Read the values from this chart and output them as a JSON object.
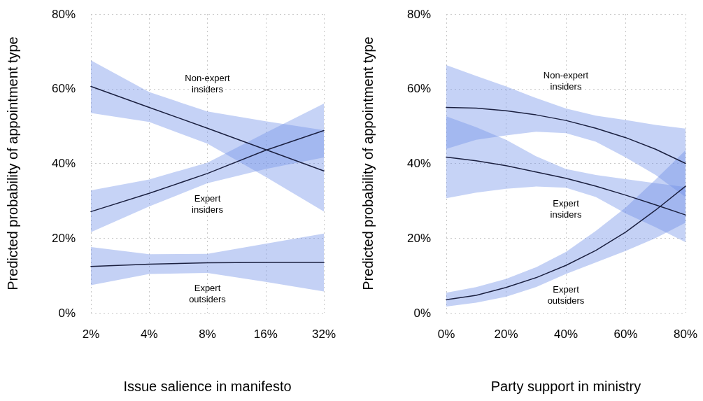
{
  "chart_data": [
    {
      "type": "line",
      "xlabel": "Issue salience in manifesto",
      "ylabel": "Predicted probability of appointment type",
      "categories": [
        "2%",
        "4%",
        "8%",
        "16%",
        "32%"
      ],
      "ylim": [
        0,
        80
      ],
      "yticks": [
        {
          "value": 0,
          "label": "0%"
        },
        {
          "value": 20,
          "label": "20%"
        },
        {
          "value": 40,
          "label": "40%"
        },
        {
          "value": 60,
          "label": "60%"
        },
        {
          "value": 80,
          "label": "80%"
        }
      ],
      "grid": true,
      "marker": "none",
      "line_style": "solid",
      "series": [
        {
          "name": "Non-expert\ninsiders",
          "color": "#1b2040",
          "values": [
            60.6,
            55.0,
            49.4,
            43.7,
            38.0
          ],
          "upper": [
            67.6,
            59.1,
            53.9,
            51.3,
            48.9
          ],
          "lower": [
            53.5,
            51.1,
            45.3,
            36.4,
            27.1
          ]
        },
        {
          "name": "Expert\ninsiders",
          "color": "#1b2040",
          "values": [
            27.1,
            32.0,
            37.3,
            43.5,
            48.8
          ],
          "upper": [
            32.8,
            35.7,
            40.2,
            48.2,
            56.0
          ],
          "lower": [
            21.6,
            28.5,
            34.7,
            38.5,
            41.6
          ]
        },
        {
          "name": "Expert\noutsiders",
          "color": "#1b2040",
          "values": [
            12.4,
            13.0,
            13.4,
            13.5,
            13.5
          ],
          "upper": [
            17.6,
            15.7,
            15.8,
            18.5,
            21.2
          ],
          "lower": [
            7.4,
            10.4,
            10.7,
            8.3,
            5.7
          ]
        }
      ]
    },
    {
      "type": "line",
      "xlabel": "Party support in ministry",
      "ylabel": "Predicted probability of appointment type",
      "xlim": [
        0,
        80
      ],
      "xticks": [
        {
          "value": 0,
          "label": "0%"
        },
        {
          "value": 20,
          "label": "20%"
        },
        {
          "value": 40,
          "label": "40%"
        },
        {
          "value": 60,
          "label": "60%"
        },
        {
          "value": 80,
          "label": "80%"
        }
      ],
      "ylim": [
        0,
        80
      ],
      "yticks": [
        {
          "value": 0,
          "label": "0%"
        },
        {
          "value": 20,
          "label": "20%"
        },
        {
          "value": 40,
          "label": "40%"
        },
        {
          "value": 60,
          "label": "60%"
        },
        {
          "value": 80,
          "label": "80%"
        }
      ],
      "grid": true,
      "marker": "none",
      "line_style": "solid",
      "x": [
        0,
        10,
        20,
        30,
        40,
        50,
        60,
        70,
        80
      ],
      "series": [
        {
          "name": "Non-expert\ninsiders",
          "color": "#1b2040",
          "values": [
            55.0,
            54.8,
            54.1,
            53.0,
            51.5,
            49.4,
            46.9,
            43.8,
            40.0
          ],
          "upper": [
            66.3,
            63.4,
            60.6,
            57.5,
            54.7,
            52.8,
            51.6,
            50.3,
            49.3
          ],
          "lower": [
            43.9,
            46.3,
            47.5,
            48.5,
            48.1,
            45.8,
            41.6,
            36.9,
            31.0
          ]
        },
        {
          "name": "Expert\ninsiders",
          "color": "#1b2040",
          "values": [
            41.7,
            40.7,
            39.4,
            37.7,
            36.0,
            33.9,
            31.5,
            28.9,
            26.2
          ],
          "upper": [
            52.6,
            49.7,
            46.3,
            41.9,
            38.5,
            36.9,
            35.8,
            34.7,
            33.7
          ],
          "lower": [
            30.7,
            32.2,
            33.2,
            33.8,
            33.5,
            31.0,
            26.6,
            22.9,
            18.9
          ]
        },
        {
          "name": "Expert\noutsiders",
          "color": "#1b2040",
          "values": [
            3.5,
            4.7,
            6.8,
            9.4,
            12.7,
            16.7,
            21.6,
            27.5,
            33.9
          ],
          "upper": [
            5.4,
            6.9,
            9.1,
            12.2,
            16.3,
            21.9,
            28.2,
            35.7,
            43.5
          ],
          "lower": [
            1.7,
            2.7,
            4.3,
            6.9,
            10.4,
            13.5,
            16.6,
            20.0,
            24.1
          ]
        }
      ]
    }
  ]
}
